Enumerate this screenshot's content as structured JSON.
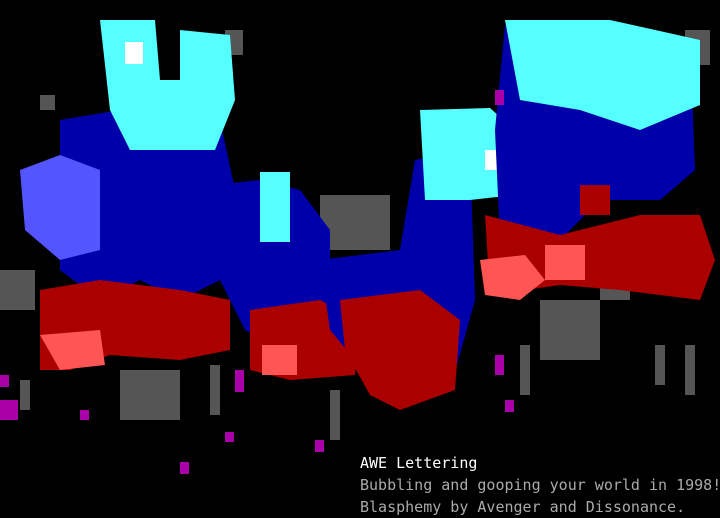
{
  "caption": {
    "title": "AWE Lettering",
    "line1": "Bubbling and gooping your world in 1998!",
    "line2": "Blasphemy by Avenger and Dissonance."
  },
  "palette": {
    "cyan": "#55ffff",
    "blue": "#0000aa",
    "light_blue": "#5555ff",
    "red": "#aa0000",
    "light_red": "#ff5555",
    "dark_gray": "#555555",
    "light_gray": "#aaaaaa",
    "magenta": "#aa00aa",
    "white": "#ffffff",
    "background": "#000000"
  }
}
